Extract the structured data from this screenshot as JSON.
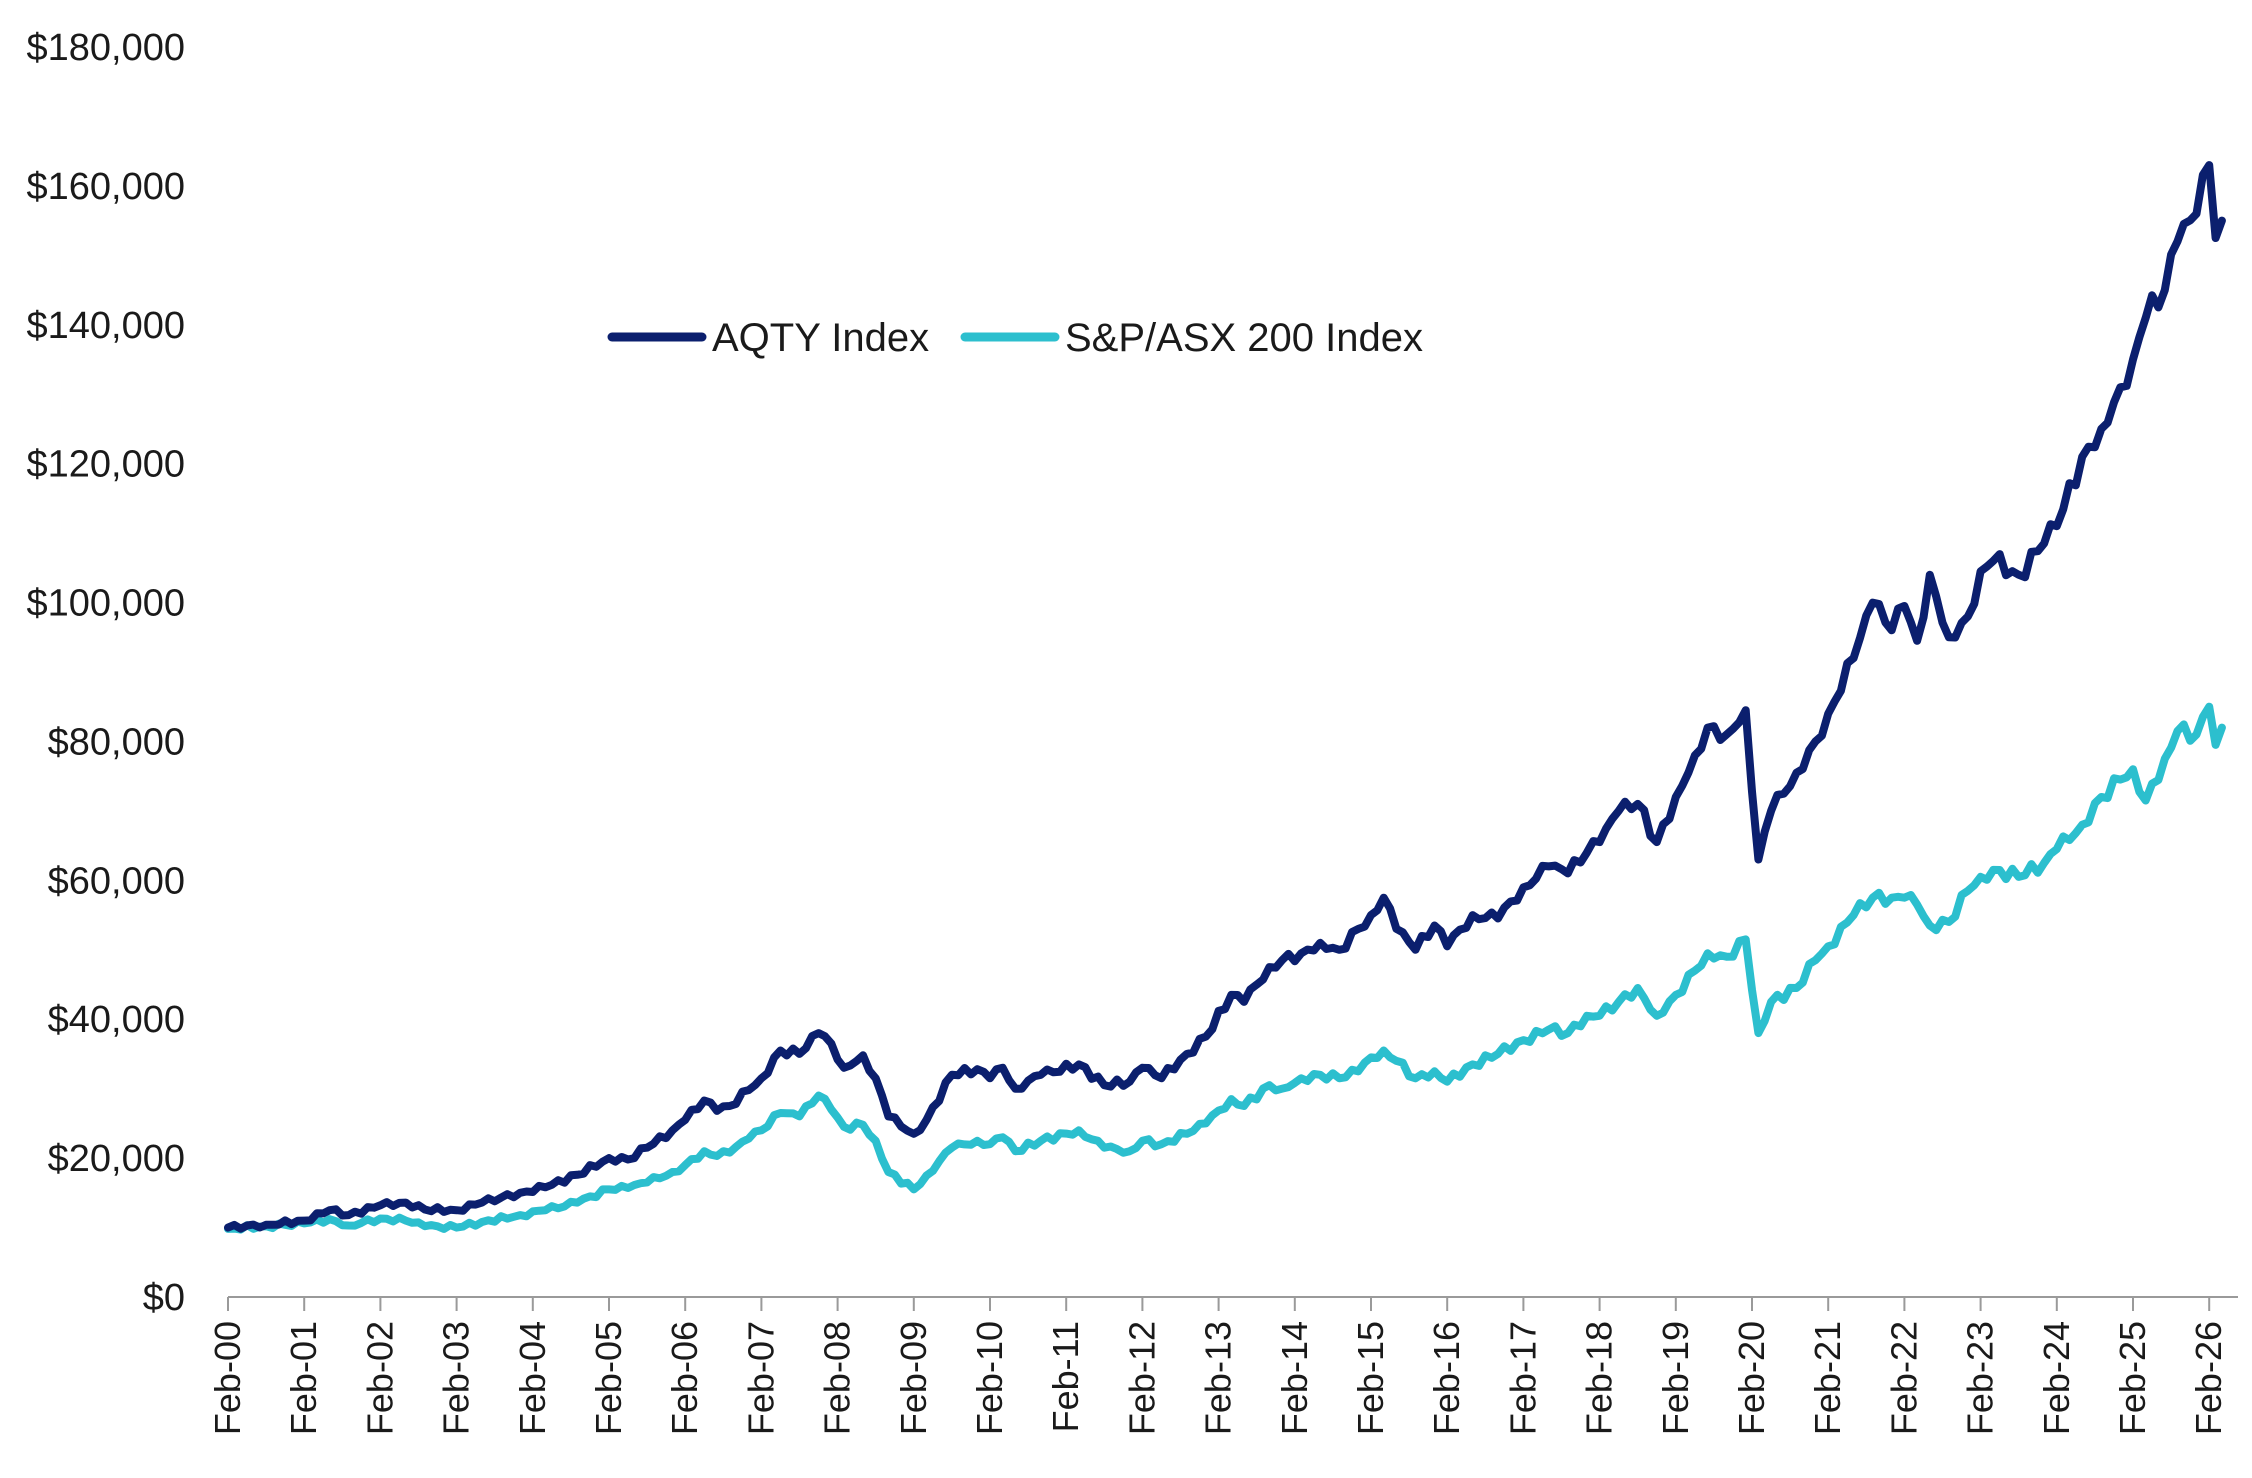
{
  "chart_data": {
    "type": "line",
    "title": "",
    "xlabel": "",
    "ylabel": "",
    "ylim": [
      0,
      180000
    ],
    "y_ticks": [
      {
        "value": 0,
        "label": "$0"
      },
      {
        "value": 20000,
        "label": "$20,000"
      },
      {
        "value": 40000,
        "label": "$40,000"
      },
      {
        "value": 60000,
        "label": "$60,000"
      },
      {
        "value": 80000,
        "label": "$80,000"
      },
      {
        "value": 100000,
        "label": "$100,000"
      },
      {
        "value": 120000,
        "label": "$120,000"
      },
      {
        "value": 140000,
        "label": "$140,000"
      },
      {
        "value": 160000,
        "label": "$160,000"
      },
      {
        "value": 180000,
        "label": "$180,000"
      }
    ],
    "x_tick_labels": [
      "Feb-00",
      "Feb-01",
      "Feb-02",
      "Feb-03",
      "Feb-04",
      "Feb-05",
      "Feb-06",
      "Feb-07",
      "Feb-08",
      "Feb-09",
      "Feb-10",
      "Feb-11",
      "Feb-12",
      "Feb-13",
      "Feb-14",
      "Feb-15",
      "Feb-16",
      "Feb-17",
      "Feb-18",
      "Feb-19",
      "Feb-20",
      "Feb-21",
      "Feb-22",
      "Feb-23",
      "Feb-24",
      "Feb-25",
      "Feb-26"
    ],
    "x_range": [
      "2000-02",
      "2026-04"
    ],
    "legend_position": "upper-left-center",
    "grid": false,
    "series": [
      {
        "name": "AQTY Index",
        "color": "#0b1f6e",
        "points": [
          [
            "2000-02",
            10000
          ],
          [
            "2000-08",
            10400
          ],
          [
            "2001-02",
            11000
          ],
          [
            "2001-06",
            12500
          ],
          [
            "2001-09",
            11800
          ],
          [
            "2002-02",
            13200
          ],
          [
            "2002-06",
            13600
          ],
          [
            "2002-09",
            12600
          ],
          [
            "2003-02",
            12500
          ],
          [
            "2003-06",
            13600
          ],
          [
            "2003-12",
            15000
          ],
          [
            "2004-04",
            15800
          ],
          [
            "2004-09",
            17600
          ],
          [
            "2005-02",
            20000
          ],
          [
            "2005-05",
            19800
          ],
          [
            "2005-08",
            21500
          ],
          [
            "2005-12",
            24000
          ],
          [
            "2006-02",
            25500
          ],
          [
            "2006-05",
            28300
          ],
          [
            "2006-07",
            26800
          ],
          [
            "2006-09",
            27500
          ],
          [
            "2006-12",
            29800
          ],
          [
            "2007-02",
            31500
          ],
          [
            "2007-05",
            35500
          ],
          [
            "2007-08",
            35000
          ],
          [
            "2007-11",
            38000
          ],
          [
            "2008-01",
            36500
          ],
          [
            "2008-03",
            33000
          ],
          [
            "2008-06",
            34800
          ],
          [
            "2008-08",
            31500
          ],
          [
            "2008-10",
            26000
          ],
          [
            "2009-02",
            23500
          ],
          [
            "2009-04",
            25500
          ],
          [
            "2009-08",
            32000
          ],
          [
            "2009-12",
            32800
          ],
          [
            "2010-02",
            31500
          ],
          [
            "2010-04",
            33000
          ],
          [
            "2010-06",
            30000
          ],
          [
            "2010-10",
            32000
          ],
          [
            "2011-04",
            33500
          ],
          [
            "2011-08",
            30500
          ],
          [
            "2011-12",
            31000
          ],
          [
            "2012-02",
            33000
          ],
          [
            "2012-05",
            31500
          ],
          [
            "2012-09",
            35000
          ],
          [
            "2012-12",
            37500
          ],
          [
            "2013-04",
            43500
          ],
          [
            "2013-06",
            42500
          ],
          [
            "2013-10",
            47500
          ],
          [
            "2013-12",
            48500
          ],
          [
            "2014-03",
            49500
          ],
          [
            "2014-06",
            51000
          ],
          [
            "2014-09",
            50000
          ],
          [
            "2014-12",
            53000
          ],
          [
            "2015-02",
            55000
          ],
          [
            "2015-04",
            57500
          ],
          [
            "2015-06",
            53000
          ],
          [
            "2015-09",
            50000
          ],
          [
            "2015-12",
            53500
          ],
          [
            "2016-02",
            50500
          ],
          [
            "2016-06",
            55000
          ],
          [
            "2016-10",
            54500
          ],
          [
            "2017-02",
            59000
          ],
          [
            "2017-06",
            62000
          ],
          [
            "2017-09",
            61000
          ],
          [
            "2017-12",
            64000
          ],
          [
            "2018-02",
            65500
          ],
          [
            "2018-05",
            70000
          ],
          [
            "2018-08",
            71000
          ],
          [
            "2018-11",
            65500
          ],
          [
            "2019-02",
            72000
          ],
          [
            "2019-05",
            78000
          ],
          [
            "2019-07",
            82000
          ],
          [
            "2019-10",
            81000
          ],
          [
            "2020-01",
            84500
          ],
          [
            "2020-03",
            63000
          ],
          [
            "2020-05",
            70000
          ],
          [
            "2020-09",
            75500
          ],
          [
            "2020-12",
            80000
          ],
          [
            "2021-02",
            84000
          ],
          [
            "2021-06",
            92000
          ],
          [
            "2021-09",
            100000
          ],
          [
            "2021-12",
            96000
          ],
          [
            "2022-02",
            99500
          ],
          [
            "2022-04",
            94500
          ],
          [
            "2022-06",
            104000
          ],
          [
            "2022-09",
            95000
          ],
          [
            "2022-12",
            98000
          ],
          [
            "2023-02",
            104500
          ],
          [
            "2023-04",
            106000
          ],
          [
            "2023-08",
            104000
          ],
          [
            "2023-12",
            108500
          ],
          [
            "2024-02",
            111000
          ],
          [
            "2024-06",
            121000
          ],
          [
            "2024-09",
            125000
          ],
          [
            "2024-12",
            131000
          ],
          [
            "2025-02",
            135000
          ],
          [
            "2025-04",
            141000
          ],
          [
            "2025-07",
            145000
          ],
          [
            "2025-09",
            152000
          ],
          [
            "2025-12",
            156000
          ],
          [
            "2026-02",
            163000
          ],
          [
            "2026-03",
            152500
          ],
          [
            "2026-04",
            155000
          ]
        ]
      },
      {
        "name": "S&P/ASX 200 Index",
        "color": "#2cbfce",
        "points": [
          [
            "2000-02",
            9800
          ],
          [
            "2000-08",
            10200
          ],
          [
            "2001-02",
            10600
          ],
          [
            "2001-06",
            11200
          ],
          [
            "2001-09",
            10300
          ],
          [
            "2002-02",
            11300
          ],
          [
            "2002-06",
            11000
          ],
          [
            "2002-09",
            10200
          ],
          [
            "2003-02",
            10000
          ],
          [
            "2003-06",
            10800
          ],
          [
            "2003-12",
            11800
          ],
          [
            "2004-04",
            12500
          ],
          [
            "2004-09",
            13600
          ],
          [
            "2005-02",
            15500
          ],
          [
            "2005-05",
            15700
          ],
          [
            "2005-08",
            16500
          ],
          [
            "2005-12",
            18000
          ],
          [
            "2006-02",
            19000
          ],
          [
            "2006-05",
            21000
          ],
          [
            "2006-07",
            20300
          ],
          [
            "2006-09",
            20800
          ],
          [
            "2006-12",
            22800
          ],
          [
            "2007-02",
            24000
          ],
          [
            "2007-05",
            26500
          ],
          [
            "2007-08",
            26000
          ],
          [
            "2007-11",
            29000
          ],
          [
            "2008-01",
            27000
          ],
          [
            "2008-03",
            24500
          ],
          [
            "2008-06",
            24800
          ],
          [
            "2008-08",
            22500
          ],
          [
            "2008-10",
            18000
          ],
          [
            "2009-02",
            15500
          ],
          [
            "2009-04",
            17500
          ],
          [
            "2009-08",
            21500
          ],
          [
            "2009-12",
            22500
          ],
          [
            "2010-02",
            22000
          ],
          [
            "2010-04",
            23000
          ],
          [
            "2010-06",
            21000
          ],
          [
            "2010-10",
            22500
          ],
          [
            "2011-04",
            24000
          ],
          [
            "2011-08",
            21500
          ],
          [
            "2011-12",
            21000
          ],
          [
            "2012-02",
            22500
          ],
          [
            "2012-05",
            22000
          ],
          [
            "2012-09",
            23500
          ],
          [
            "2012-12",
            25000
          ],
          [
            "2013-04",
            28500
          ],
          [
            "2013-06",
            27500
          ],
          [
            "2013-10",
            30500
          ],
          [
            "2013-12",
            30000
          ],
          [
            "2014-03",
            31500
          ],
          [
            "2014-06",
            32000
          ],
          [
            "2014-09",
            31500
          ],
          [
            "2014-12",
            32500
          ],
          [
            "2015-02",
            34500
          ],
          [
            "2015-04",
            35500
          ],
          [
            "2015-06",
            34000
          ],
          [
            "2015-09",
            31500
          ],
          [
            "2015-12",
            32500
          ],
          [
            "2016-02",
            31000
          ],
          [
            "2016-06",
            33500
          ],
          [
            "2016-10",
            35000
          ],
          [
            "2017-02",
            37000
          ],
          [
            "2017-06",
            38500
          ],
          [
            "2017-09",
            38000
          ],
          [
            "2017-12",
            40500
          ],
          [
            "2018-02",
            40500
          ],
          [
            "2018-05",
            42500
          ],
          [
            "2018-08",
            44500
          ],
          [
            "2018-11",
            40500
          ],
          [
            "2019-02",
            43500
          ],
          [
            "2019-05",
            47000
          ],
          [
            "2019-07",
            49500
          ],
          [
            "2019-10",
            49000
          ],
          [
            "2020-01",
            51500
          ],
          [
            "2020-03",
            38000
          ],
          [
            "2020-05",
            42500
          ],
          [
            "2020-09",
            44500
          ],
          [
            "2020-12",
            48500
          ],
          [
            "2021-02",
            50500
          ],
          [
            "2021-06",
            55000
          ],
          [
            "2021-09",
            57500
          ],
          [
            "2021-12",
            57500
          ],
          [
            "2022-02",
            57500
          ],
          [
            "2022-04",
            56500
          ],
          [
            "2022-06",
            53500
          ],
          [
            "2022-09",
            54000
          ],
          [
            "2022-12",
            58500
          ],
          [
            "2023-02",
            60500
          ],
          [
            "2023-04",
            61500
          ],
          [
            "2023-08",
            60500
          ],
          [
            "2023-12",
            62500
          ],
          [
            "2024-02",
            64500
          ],
          [
            "2024-06",
            68000
          ],
          [
            "2024-09",
            72000
          ],
          [
            "2024-12",
            74500
          ],
          [
            "2025-02",
            76000
          ],
          [
            "2025-04",
            71500
          ],
          [
            "2025-07",
            77500
          ],
          [
            "2025-09",
            81500
          ],
          [
            "2025-12",
            81000
          ],
          [
            "2026-02",
            85000
          ],
          [
            "2026-03",
            79500
          ],
          [
            "2026-04",
            82000
          ]
        ]
      }
    ]
  }
}
